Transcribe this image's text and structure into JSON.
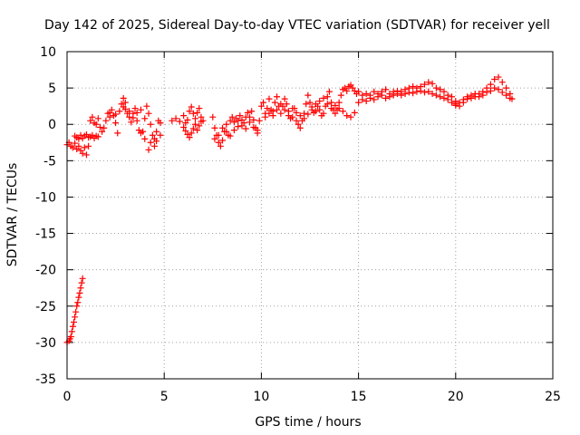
{
  "chart_data": {
    "type": "scatter",
    "title": "Day 142 of 2025, Sidereal Day-to-day VTEC variation (SDTVAR) for receiver yell",
    "xlabel": "GPS time / hours",
    "ylabel": "SDTVAR / TECUs",
    "xlim": [
      0,
      25
    ],
    "ylim": [
      -35,
      10
    ],
    "xticks": [
      "0",
      "5",
      "10",
      "15",
      "20",
      "25"
    ],
    "yticks": [
      "-35",
      "-30",
      "-25",
      "-20",
      "-15",
      "-10",
      "-5",
      "0",
      "5",
      "10"
    ],
    "grid": true,
    "marker": "+",
    "color": "#ff0000",
    "series": [
      {
        "name": "SDTVAR scatter",
        "points": [
          [
            0.0,
            -2.8
          ],
          [
            0.1,
            -2.5
          ],
          [
            0.2,
            -3.0
          ],
          [
            0.3,
            -3.2
          ],
          [
            0.4,
            -2.6
          ],
          [
            0.5,
            -3.4
          ],
          [
            0.6,
            -3.0
          ],
          [
            0.7,
            -3.6
          ],
          [
            0.8,
            -4.0
          ],
          [
            0.9,
            -3.2
          ],
          [
            1.0,
            -4.2
          ],
          [
            1.1,
            -3.0
          ],
          [
            0.4,
            -1.6
          ],
          [
            0.5,
            -1.8
          ],
          [
            0.6,
            -2.0
          ],
          [
            0.7,
            -1.5
          ],
          [
            0.8,
            -1.9
          ],
          [
            0.9,
            -1.6
          ],
          [
            1.0,
            -1.4
          ],
          [
            1.1,
            -1.8
          ],
          [
            1.2,
            -1.7
          ],
          [
            1.3,
            -1.5
          ],
          [
            1.4,
            -1.9
          ],
          [
            1.5,
            -1.6
          ],
          [
            1.6,
            -1.7
          ],
          [
            1.2,
            0.5
          ],
          [
            1.3,
            1.0
          ],
          [
            1.4,
            0.2
          ],
          [
            1.5,
            0.0
          ],
          [
            1.6,
            0.8
          ],
          [
            1.7,
            -0.4
          ],
          [
            1.8,
            -1.0
          ],
          [
            1.9,
            -0.5
          ],
          [
            2.0,
            0.5
          ],
          [
            2.1,
            1.5
          ],
          [
            2.2,
            1.0
          ],
          [
            2.3,
            2.0
          ],
          [
            2.4,
            1.2
          ],
          [
            2.5,
            0.2
          ],
          [
            2.6,
            -1.2
          ],
          [
            2.7,
            1.8
          ],
          [
            2.8,
            2.8
          ],
          [
            2.9,
            3.6
          ],
          [
            3.0,
            3.0
          ],
          [
            3.1,
            1.5
          ],
          [
            3.2,
            1.0
          ],
          [
            3.3,
            0.3
          ],
          [
            3.4,
            1.5
          ],
          [
            3.5,
            2.2
          ],
          [
            3.6,
            0.5
          ],
          [
            3.7,
            -0.8
          ],
          [
            3.8,
            -1.2
          ],
          [
            3.9,
            -1.0
          ],
          [
            4.0,
            0.8
          ],
          [
            4.1,
            2.5
          ],
          [
            4.2,
            1.5
          ],
          [
            4.3,
            0.0
          ],
          [
            4.4,
            -1.5
          ],
          [
            4.5,
            -2.0
          ],
          [
            4.6,
            -1.0
          ],
          [
            4.7,
            0.5
          ],
          [
            4.8,
            0.2
          ],
          [
            2.2,
            1.6
          ],
          [
            2.5,
            1.4
          ],
          [
            2.9,
            2.4
          ],
          [
            3.0,
            2.1
          ],
          [
            3.2,
            1.8
          ],
          [
            3.4,
            0.9
          ],
          [
            3.6,
            1.6
          ],
          [
            3.8,
            2.0
          ],
          [
            4.0,
            -2.0
          ],
          [
            4.2,
            -3.5
          ],
          [
            4.3,
            -2.5
          ],
          [
            4.5,
            -3.0
          ],
          [
            4.6,
            -2.3
          ],
          [
            4.8,
            -1.5
          ],
          [
            5.4,
            0.5
          ],
          [
            5.6,
            0.8
          ],
          [
            5.8,
            0.4
          ],
          [
            6.0,
            1.2
          ],
          [
            6.1,
            0.2
          ],
          [
            6.2,
            0.6
          ],
          [
            6.3,
            1.8
          ],
          [
            6.4,
            2.4
          ],
          [
            6.5,
            1.5
          ],
          [
            6.6,
            0.8
          ],
          [
            6.7,
            1.6
          ],
          [
            6.8,
            2.2
          ],
          [
            6.9,
            1.0
          ],
          [
            7.0,
            0.5
          ],
          [
            6.0,
            -0.4
          ],
          [
            6.1,
            -0.9
          ],
          [
            6.2,
            -1.4
          ],
          [
            6.3,
            -1.8
          ],
          [
            6.4,
            -1.2
          ],
          [
            6.5,
            -0.6
          ],
          [
            6.6,
            0.0
          ],
          [
            6.7,
            -0.8
          ],
          [
            6.8,
            -0.2
          ],
          [
            6.9,
            0.4
          ],
          [
            7.5,
            1.0
          ],
          [
            7.6,
            -0.5
          ],
          [
            7.7,
            -1.5
          ],
          [
            7.8,
            -2.5
          ],
          [
            7.9,
            -3.0
          ],
          [
            8.0,
            -2.2
          ],
          [
            8.1,
            -1.0
          ],
          [
            8.2,
            0.0
          ],
          [
            8.3,
            -1.5
          ],
          [
            8.4,
            0.5
          ],
          [
            8.5,
            1.0
          ],
          [
            8.6,
            0.3
          ],
          [
            8.7,
            0.8
          ],
          [
            8.8,
            0.5
          ],
          [
            8.9,
            1.2
          ],
          [
            9.0,
            0.6
          ],
          [
            9.1,
            0.2
          ],
          [
            9.2,
            1.0
          ],
          [
            9.3,
            1.6
          ],
          [
            9.4,
            1.0
          ],
          [
            9.5,
            1.8
          ],
          [
            9.6,
            0.6
          ],
          [
            9.7,
            -0.5
          ],
          [
            9.8,
            -1.2
          ],
          [
            9.9,
            0.5
          ],
          [
            7.6,
            -2.0
          ],
          [
            7.8,
            -1.5
          ],
          [
            8.0,
            -0.5
          ],
          [
            8.2,
            -1.0
          ],
          [
            8.4,
            -1.6
          ],
          [
            8.6,
            -0.8
          ],
          [
            8.8,
            -0.3
          ],
          [
            9.0,
            -0.2
          ],
          [
            9.2,
            -0.6
          ],
          [
            9.4,
            0.3
          ],
          [
            9.6,
            -0.4
          ],
          [
            9.8,
            -0.8
          ],
          [
            10.0,
            2.5
          ],
          [
            10.1,
            3.0
          ],
          [
            10.2,
            1.5
          ],
          [
            10.3,
            2.2
          ],
          [
            10.4,
            3.5
          ],
          [
            10.5,
            2.0
          ],
          [
            10.6,
            1.8
          ],
          [
            10.7,
            3.0
          ],
          [
            10.8,
            3.8
          ],
          [
            10.9,
            2.5
          ],
          [
            11.0,
            1.5
          ],
          [
            11.1,
            2.5
          ],
          [
            11.2,
            3.5
          ],
          [
            11.3,
            2.8
          ],
          [
            11.4,
            1.2
          ],
          [
            11.5,
            0.8
          ],
          [
            11.6,
            1.0
          ],
          [
            11.7,
            2.2
          ],
          [
            11.8,
            0.5
          ],
          [
            11.9,
            0.0
          ],
          [
            12.0,
            -0.5
          ],
          [
            12.1,
            0.5
          ],
          [
            12.2,
            1.5
          ],
          [
            12.3,
            2.8
          ],
          [
            12.4,
            4.0
          ],
          [
            12.5,
            3.0
          ],
          [
            12.6,
            2.0
          ],
          [
            12.7,
            1.6
          ],
          [
            12.8,
            1.8
          ],
          [
            12.9,
            2.5
          ],
          [
            13.0,
            2.0
          ],
          [
            13.1,
            1.2
          ],
          [
            13.2,
            1.5
          ],
          [
            13.3,
            2.5
          ],
          [
            13.4,
            3.8
          ],
          [
            13.5,
            4.5
          ],
          [
            13.6,
            3.0
          ],
          [
            13.7,
            2.0
          ],
          [
            13.8,
            1.5
          ],
          [
            13.9,
            2.0
          ],
          [
            14.0,
            3.0
          ],
          [
            14.1,
            4.0
          ],
          [
            14.2,
            4.8
          ],
          [
            14.3,
            5.0
          ],
          [
            14.4,
            4.6
          ],
          [
            14.5,
            5.2
          ],
          [
            14.6,
            5.4
          ],
          [
            14.7,
            5.0
          ],
          [
            14.8,
            4.6
          ],
          [
            14.9,
            4.2
          ],
          [
            10.2,
            1.0
          ],
          [
            10.4,
            1.5
          ],
          [
            10.6,
            1.2
          ],
          [
            10.8,
            2.0
          ],
          [
            11.0,
            2.8
          ],
          [
            11.2,
            2.0
          ],
          [
            11.4,
            1.8
          ],
          [
            11.6,
            2.2
          ],
          [
            11.8,
            1.6
          ],
          [
            12.0,
            1.2
          ],
          [
            12.2,
            0.8
          ],
          [
            12.4,
            1.4
          ],
          [
            12.6,
            2.4
          ],
          [
            12.8,
            2.8
          ],
          [
            13.0,
            3.2
          ],
          [
            13.2,
            3.6
          ],
          [
            13.4,
            2.8
          ],
          [
            13.6,
            2.2
          ],
          [
            13.8,
            2.6
          ],
          [
            14.0,
            2.2
          ],
          [
            14.2,
            1.8
          ],
          [
            14.4,
            1.2
          ],
          [
            14.6,
            1.0
          ],
          [
            14.8,
            1.6
          ],
          [
            15.0,
            4.5
          ],
          [
            15.2,
            4.0
          ],
          [
            15.4,
            4.2
          ],
          [
            15.6,
            4.0
          ],
          [
            15.8,
            4.5
          ],
          [
            16.0,
            4.2
          ],
          [
            16.2,
            4.5
          ],
          [
            16.4,
            4.8
          ],
          [
            16.6,
            4.2
          ],
          [
            16.8,
            4.5
          ],
          [
            17.0,
            4.6
          ],
          [
            17.2,
            4.5
          ],
          [
            17.4,
            4.8
          ],
          [
            17.6,
            5.0
          ],
          [
            17.8,
            5.2
          ],
          [
            18.0,
            5.0
          ],
          [
            18.2,
            5.2
          ],
          [
            18.4,
            5.5
          ],
          [
            18.6,
            5.8
          ],
          [
            18.8,
            5.6
          ],
          [
            19.0,
            5.0
          ],
          [
            19.2,
            4.8
          ],
          [
            19.4,
            4.5
          ],
          [
            19.6,
            4.0
          ],
          [
            19.8,
            3.8
          ],
          [
            20.0,
            3.2
          ],
          [
            15.0,
            3.0
          ],
          [
            15.2,
            3.4
          ],
          [
            15.4,
            3.2
          ],
          [
            15.6,
            3.6
          ],
          [
            15.8,
            3.4
          ],
          [
            16.0,
            3.8
          ],
          [
            16.2,
            4.0
          ],
          [
            16.4,
            3.6
          ],
          [
            16.6,
            3.8
          ],
          [
            16.8,
            4.0
          ],
          [
            17.0,
            4.2
          ],
          [
            17.2,
            4.0
          ],
          [
            17.4,
            4.2
          ],
          [
            17.6,
            4.4
          ],
          [
            17.8,
            4.3
          ],
          [
            18.0,
            4.5
          ],
          [
            18.2,
            4.6
          ],
          [
            18.4,
            4.4
          ],
          [
            18.6,
            4.5
          ],
          [
            18.8,
            4.2
          ],
          [
            19.0,
            4.0
          ],
          [
            19.2,
            3.8
          ],
          [
            19.4,
            3.6
          ],
          [
            19.6,
            3.4
          ],
          [
            19.8,
            3.0
          ],
          [
            20.0,
            2.8
          ],
          [
            20.0,
            2.6
          ],
          [
            20.2,
            2.5
          ],
          [
            20.4,
            3.0
          ],
          [
            20.6,
            3.5
          ],
          [
            20.8,
            4.0
          ],
          [
            21.0,
            4.2
          ],
          [
            21.2,
            3.8
          ],
          [
            21.4,
            4.5
          ],
          [
            21.6,
            5.0
          ],
          [
            21.8,
            5.5
          ],
          [
            22.0,
            6.2
          ],
          [
            22.2,
            6.5
          ],
          [
            22.4,
            5.8
          ],
          [
            22.6,
            5.0
          ],
          [
            22.8,
            4.2
          ],
          [
            22.9,
            3.5
          ],
          [
            20.2,
            3.0
          ],
          [
            20.4,
            3.4
          ],
          [
            20.6,
            3.8
          ],
          [
            20.8,
            3.6
          ],
          [
            21.0,
            3.8
          ],
          [
            21.2,
            4.2
          ],
          [
            21.4,
            4.0
          ],
          [
            21.6,
            4.4
          ],
          [
            21.8,
            4.6
          ],
          [
            22.0,
            5.0
          ],
          [
            22.2,
            4.8
          ],
          [
            22.4,
            4.4
          ],
          [
            22.6,
            4.0
          ],
          [
            22.8,
            3.6
          ]
        ]
      },
      {
        "name": "SDTVAR early descending segment",
        "points": [
          [
            0.0,
            -30.0
          ],
          [
            0.1,
            -29.8
          ],
          [
            0.15,
            -29.5
          ],
          [
            0.2,
            -29.2
          ],
          [
            0.25,
            -28.5
          ],
          [
            0.3,
            -27.8
          ],
          [
            0.35,
            -27.2
          ],
          [
            0.4,
            -26.5
          ],
          [
            0.45,
            -25.8
          ],
          [
            0.5,
            -25.0
          ],
          [
            0.55,
            -24.5
          ],
          [
            0.6,
            -23.8
          ],
          [
            0.65,
            -23.2
          ],
          [
            0.7,
            -22.5
          ],
          [
            0.75,
            -21.8
          ],
          [
            0.8,
            -21.2
          ]
        ]
      }
    ]
  }
}
